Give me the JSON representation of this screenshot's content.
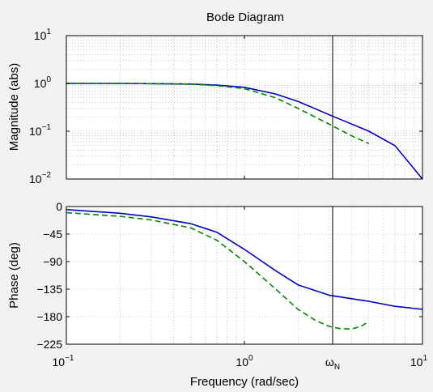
{
  "chart_data": {
    "title": "Bode Diagram",
    "xlabel": "Frequency (rad/sec)",
    "x_scale": "log",
    "xlim": [
      0.1,
      10
    ],
    "x_ticks": [
      {
        "base": "10",
        "exp": "−1",
        "value": 0.1
      },
      {
        "base": "10",
        "exp": "0",
        "value": 1
      },
      {
        "base": "10",
        "exp": "1",
        "value": 10
      }
    ],
    "marker": {
      "label_main": "ω",
      "label_sub": "N",
      "x": 5
    },
    "grid": true,
    "colors": {
      "solid": "#0000cc",
      "dashed": "#008800",
      "background": "#f2f2f2",
      "plot_bg": "#ffffff"
    },
    "panels": [
      {
        "type": "line",
        "ylabel": "Magnitude (abs)",
        "y_scale": "log",
        "ylim": [
          0.01,
          10
        ],
        "y_ticks": [
          {
            "base": "10",
            "exp": "1",
            "value": 10
          },
          {
            "base": "10",
            "exp": "0",
            "value": 1
          },
          {
            "base": "10",
            "exp": "−1",
            "value": 0.1
          },
          {
            "base": "10",
            "exp": "−2",
            "value": 0.01
          }
        ],
        "series": [
          {
            "style": "solid",
            "x": [
              0.1,
              0.2,
              0.3,
              0.5,
              0.7,
              1.0,
              1.5,
              2.0,
              3.0,
              5.0,
              7.0,
              10.0
            ],
            "values": [
              1.0,
              1.0,
              0.99,
              0.97,
              0.92,
              0.83,
              0.6,
              0.42,
              0.22,
              0.1,
              0.05,
              0.01
            ]
          },
          {
            "style": "dashed",
            "x": [
              0.1,
              0.2,
              0.3,
              0.5,
              0.7,
              1.0,
              1.5,
              2.0,
              3.0,
              4.0,
              5.0
            ],
            "values": [
              1.0,
              1.0,
              0.99,
              0.96,
              0.9,
              0.78,
              0.5,
              0.3,
              0.14,
              0.08,
              0.055
            ]
          }
        ]
      },
      {
        "type": "line",
        "ylabel": "Phase (deg)",
        "y_scale": "linear",
        "ylim": [
          -225,
          0
        ],
        "y_ticks": [
          {
            "label": "0",
            "value": 0
          },
          {
            "label": "−45",
            "value": -45
          },
          {
            "label": "−90",
            "value": -90
          },
          {
            "label": "−135",
            "value": -135
          },
          {
            "label": "−180",
            "value": -180
          },
          {
            "label": "−225",
            "value": -225
          }
        ],
        "series": [
          {
            "style": "solid",
            "x": [
              0.1,
              0.2,
              0.3,
              0.5,
              0.7,
              1.0,
              1.5,
              2.0,
              3.0,
              5.0,
              7.0,
              10.0
            ],
            "values": [
              -5,
              -11,
              -17,
              -28,
              -42,
              -70,
              -105,
              -128,
              -145,
              -155,
              -163,
              -168
            ]
          },
          {
            "style": "dashed",
            "x": [
              0.1,
              0.2,
              0.3,
              0.5,
              0.7,
              1.0,
              1.5,
              2.0,
              2.5,
              3.0,
              3.5,
              4.0,
              4.5,
              5.0
            ],
            "values": [
              -10,
              -16,
              -22,
              -35,
              -55,
              -90,
              -135,
              -168,
              -186,
              -196,
              -200,
              -200,
              -196,
              -188
            ]
          }
        ]
      }
    ]
  }
}
